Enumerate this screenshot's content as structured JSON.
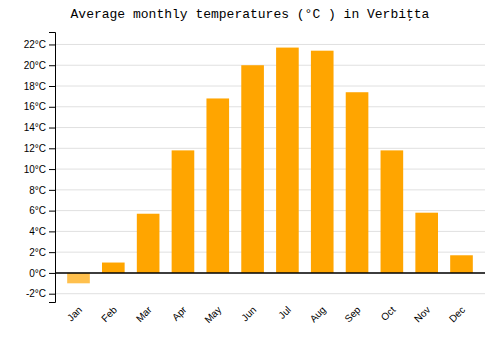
{
  "chart_data": {
    "type": "bar",
    "title": "Average monthly temperatures (°C ) in Verbiţta",
    "categories": [
      "Jan",
      "Feb",
      "Mar",
      "Apr",
      "May",
      "Jun",
      "Jul",
      "Aug",
      "Sep",
      "Oct",
      "Nov",
      "Dec"
    ],
    "values": [
      -1.0,
      1.0,
      5.7,
      11.8,
      16.8,
      20.0,
      21.7,
      21.4,
      17.4,
      11.8,
      5.8,
      1.7
    ],
    "colors": [
      "#FFC04D",
      "#FFA500",
      "#FFA500",
      "#FFA500",
      "#FFA500",
      "#FFA500",
      "#FFA500",
      "#FFA500",
      "#FFA500",
      "#FFA500",
      "#FFA500",
      "#FFA500"
    ],
    "ylim": [
      -2.8,
      23.2
    ],
    "yticks": [
      {
        "value": -2,
        "label": "-2°C"
      },
      {
        "value": 0,
        "label": "0°C"
      },
      {
        "value": 2,
        "label": "2°C"
      },
      {
        "value": 4,
        "label": "4°C"
      },
      {
        "value": 6,
        "label": "6°C"
      },
      {
        "value": 8,
        "label": "8°C"
      },
      {
        "value": 10,
        "label": "10°C"
      },
      {
        "value": 12,
        "label": "12°C"
      },
      {
        "value": 14,
        "label": "14°C"
      },
      {
        "value": 16,
        "label": "16°C"
      },
      {
        "value": 18,
        "label": "18°C"
      },
      {
        "value": 20,
        "label": "20°C"
      },
      {
        "value": 22,
        "label": "22°C"
      }
    ],
    "grid": true
  }
}
